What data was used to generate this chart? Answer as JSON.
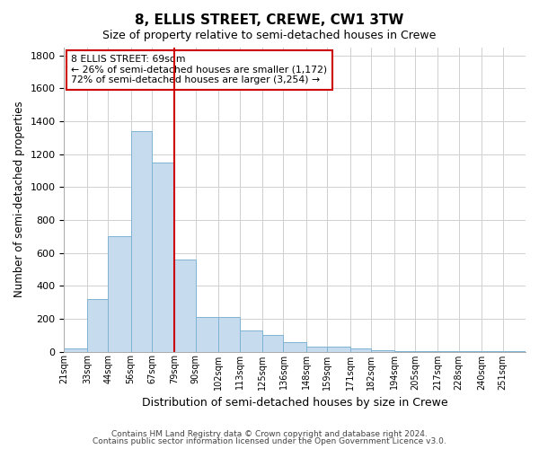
{
  "title": "8, ELLIS STREET, CREWE, CW1 3TW",
  "subtitle": "Size of property relative to semi-detached houses in Crewe",
  "xlabel": "Distribution of semi-detached houses by size in Crewe",
  "ylabel": "Number of semi-detached properties",
  "footer_line1": "Contains HM Land Registry data © Crown copyright and database right 2024.",
  "footer_line2": "Contains public sector information licensed under the Open Government Licence v3.0.",
  "annotation_title": "8 ELLIS STREET: 69sqm",
  "annotation_line1": "← 26% of semi-detached houses are smaller (1,172)",
  "annotation_line2": "72% of semi-detached houses are larger (3,254) →",
  "property_size": 69,
  "bar_color": "#c6dcee",
  "bar_edgecolor": "#7fb3d3",
  "vline_color": "#cc0000",
  "annotation_box_edgecolor": "#cc0000",
  "grid_color": "#d0d0d0",
  "background_color": "#ffffff",
  "categories": [
    "21sqm",
    "33sqm",
    "44sqm",
    "56sqm",
    "67sqm",
    "79sqm",
    "90sqm",
    "102sqm",
    "113sqm",
    "125sqm",
    "136sqm",
    "148sqm",
    "159sqm",
    "171sqm",
    "182sqm",
    "194sqm",
    "205sqm",
    "217sqm",
    "228sqm",
    "240sqm",
    "251sqm"
  ],
  "bin_edges": [
    21,
    33,
    44,
    56,
    67,
    79,
    90,
    102,
    113,
    125,
    136,
    148,
    159,
    171,
    182,
    194,
    205,
    217,
    228,
    240,
    251,
    263
  ],
  "values": [
    18,
    320,
    700,
    1340,
    1150,
    560,
    210,
    210,
    130,
    100,
    55,
    30,
    30,
    20,
    10,
    5,
    2,
    2,
    2,
    2,
    2
  ],
  "ylim": [
    0,
    1850
  ],
  "yticks": [
    0,
    200,
    400,
    600,
    800,
    1000,
    1200,
    1400,
    1600,
    1800
  ]
}
